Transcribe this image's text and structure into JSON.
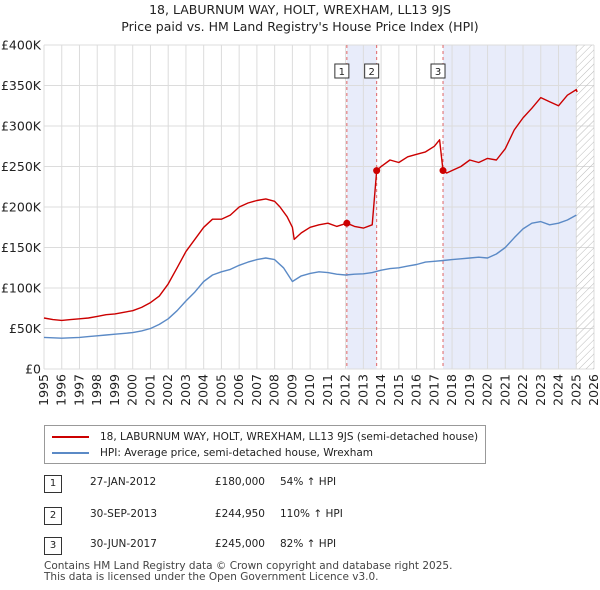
{
  "chart_data": {
    "type": "line",
    "title": "18, LABURNUM WAY, HOLT, WREXHAM, LL13 9JS",
    "subtitle": "Price paid vs. HM Land Registry's House Price Index (HPI)",
    "xlim": [
      1995,
      2026
    ],
    "ylim": [
      0,
      400000
    ],
    "x_ticks": [
      "1995",
      "1996",
      "1997",
      "1998",
      "1999",
      "2000",
      "2001",
      "2002",
      "2003",
      "2004",
      "2005",
      "2006",
      "2007",
      "2008",
      "2009",
      "2010",
      "2011",
      "2012",
      "2013",
      "2014",
      "2015",
      "2016",
      "2017",
      "2018",
      "2019",
      "2020",
      "2021",
      "2022",
      "2023",
      "2024",
      "2025",
      "2026"
    ],
    "y_ticks": [
      {
        "value": 0,
        "label": "£0"
      },
      {
        "value": 50000,
        "label": "£50K"
      },
      {
        "value": 100000,
        "label": "£100K"
      },
      {
        "value": 150000,
        "label": "£150K"
      },
      {
        "value": 200000,
        "label": "£200K"
      },
      {
        "value": 250000,
        "label": "£250K"
      },
      {
        "value": 300000,
        "label": "£300K"
      },
      {
        "value": 350000,
        "label": "£350K"
      },
      {
        "value": 400000,
        "label": "£400K"
      }
    ],
    "grid": true,
    "shaded_periods": [
      {
        "from": 2012.07,
        "to": 2013.75
      },
      {
        "from": 2017.49,
        "to": 2025.0
      }
    ],
    "hatched_region": {
      "from": 2025.0,
      "to": 2026
    },
    "series": [
      {
        "name": "18, LABURNUM WAY, HOLT, WREXHAM, LL13 9JS (semi-detached house)",
        "color": "#cc0000",
        "x": [
          1995,
          1995.5,
          1996,
          1996.5,
          1997,
          1997.5,
          1998,
          1998.5,
          1999,
          1999.5,
          2000,
          2000.5,
          2001,
          2001.5,
          2002,
          2002.5,
          2003,
          2003.5,
          2004,
          2004.5,
          2005,
          2005.5,
          2006,
          2006.5,
          2007,
          2007.5,
          2008,
          2008.3,
          2008.7,
          2009,
          2009.1,
          2009.5,
          2010,
          2010.5,
          2011,
          2011.5,
          2012.07,
          2012.5,
          2013,
          2013.5,
          2013.75,
          2014,
          2014.5,
          2015,
          2015.5,
          2016,
          2016.5,
          2017,
          2017.3,
          2017.49,
          2017.7,
          2018,
          2018.5,
          2019,
          2019.5,
          2020,
          2020.5,
          2021,
          2021.5,
          2022,
          2022.5,
          2023,
          2023.5,
          2024,
          2024.5,
          2025,
          2025.05
        ],
        "y": [
          63000,
          61000,
          60000,
          61000,
          62000,
          63000,
          65000,
          67000,
          68000,
          70000,
          72000,
          76000,
          82000,
          90000,
          105000,
          125000,
          145000,
          160000,
          175000,
          185000,
          185000,
          190000,
          200000,
          205000,
          208000,
          210000,
          207000,
          200000,
          188000,
          175000,
          160000,
          168000,
          175000,
          178000,
          180000,
          176000,
          180000,
          176000,
          174000,
          178000,
          244950,
          250000,
          258000,
          255000,
          262000,
          265000,
          268000,
          275000,
          283000,
          245000,
          242000,
          245000,
          250000,
          258000,
          255000,
          260000,
          258000,
          272000,
          295000,
          310000,
          322000,
          335000,
          330000,
          325000,
          338000,
          345000,
          342000
        ]
      },
      {
        "name": "HPI: Average price, semi-detached house, Wrexham",
        "color": "#5b8ac6",
        "x": [
          1995,
          1995.5,
          1996,
          1996.5,
          1997,
          1997.5,
          1998,
          1998.5,
          1999,
          1999.5,
          2000,
          2000.5,
          2001,
          2001.5,
          2002,
          2002.5,
          2003,
          2003.5,
          2004,
          2004.5,
          2005,
          2005.5,
          2006,
          2006.5,
          2007,
          2007.5,
          2008,
          2008.5,
          2009,
          2009.5,
          2010,
          2010.5,
          2011,
          2011.5,
          2012,
          2012.5,
          2013,
          2013.5,
          2014,
          2014.5,
          2015,
          2015.5,
          2016,
          2016.5,
          2017,
          2017.5,
          2018,
          2018.5,
          2019,
          2019.5,
          2020,
          2020.5,
          2021,
          2021.5,
          2022,
          2022.5,
          2023,
          2023.5,
          2024,
          2024.5,
          2025
        ],
        "y": [
          39000,
          38500,
          38000,
          38500,
          39000,
          40000,
          41000,
          42000,
          43000,
          44000,
          45000,
          47000,
          50000,
          55000,
          62000,
          72000,
          84000,
          95000,
          108000,
          116000,
          120000,
          123000,
          128000,
          132000,
          135000,
          137000,
          135000,
          125000,
          108000,
          115000,
          118000,
          120000,
          119000,
          117000,
          116000,
          117000,
          117500,
          119000,
          122000,
          124000,
          125000,
          127000,
          129000,
          132000,
          133000,
          134000,
          135000,
          136000,
          137000,
          138000,
          137000,
          142000,
          150000,
          162000,
          173000,
          180000,
          182000,
          178000,
          180000,
          184000,
          190000
        ]
      }
    ],
    "markers": [
      {
        "label": "1",
        "x": 2012.07,
        "y": 180000
      },
      {
        "label": "2",
        "x": 2013.75,
        "y": 244950
      },
      {
        "label": "3",
        "x": 2017.49,
        "y": 245000
      }
    ]
  },
  "legend": {
    "property_label": "18, LABURNUM WAY, HOLT, WREXHAM, LL13 9JS (semi-detached house)",
    "property_color": "#cc0000",
    "hpi_label": "HPI: Average price, semi-detached house, Wrexham",
    "hpi_color": "#5b8ac6"
  },
  "transactions": [
    {
      "num": "1",
      "date": "27-JAN-2012",
      "price": "£180,000",
      "hpi": "54% ↑ HPI"
    },
    {
      "num": "2",
      "date": "30-SEP-2013",
      "price": "£244,950",
      "hpi": "110% ↑ HPI"
    },
    {
      "num": "3",
      "date": "30-JUN-2017",
      "price": "£245,000",
      "hpi": "82% ↑ HPI"
    }
  ],
  "footer": {
    "line1": "Contains HM Land Registry data © Crown copyright and database right 2025.",
    "line2": "This data is licensed under the Open Government Licence v3.0."
  }
}
